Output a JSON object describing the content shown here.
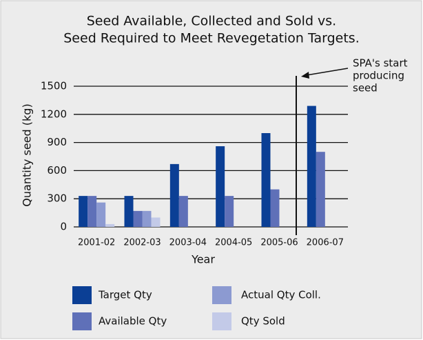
{
  "chart_data": {
    "type": "bar",
    "title_lines": [
      "Seed Available, Collected and Sold vs.",
      "Seed Required to Meet Revegetation Targets."
    ],
    "y_label": "Quantity seed (kg)",
    "x_label": "Year",
    "annotation_lines": [
      "SPA's start",
      "producing",
      "seed"
    ],
    "categories": [
      "2001-02",
      "2002-03",
      "2003-04",
      "2004-05",
      "2005-06",
      "2006-07"
    ],
    "series": [
      {
        "name": "Target Qty",
        "color": "#0b3f95",
        "values": [
          330,
          330,
          670,
          860,
          1000,
          1290
        ]
      },
      {
        "name": "Available Qty",
        "color": "#5f70b8",
        "values": [
          330,
          170,
          330,
          330,
          400,
          800
        ]
      },
      {
        "name": "Actual Qty Coll.",
        "color": "#8c9ad1",
        "values": [
          260,
          170,
          0,
          0,
          0,
          0
        ]
      },
      {
        "name": "Qty Sold",
        "color": "#c3cae8",
        "values": [
          30,
          100,
          0,
          0,
          0,
          0
        ]
      }
    ],
    "ylim": [
      0,
      1500
    ],
    "yticks": [
      0,
      300,
      600,
      900,
      1200,
      1500
    ],
    "grid": true
  }
}
